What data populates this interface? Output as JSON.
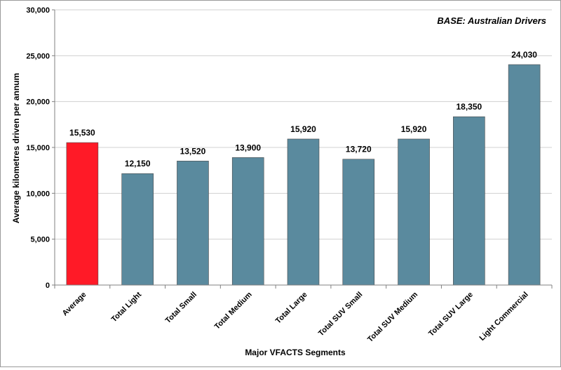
{
  "chart_data": {
    "type": "bar",
    "title": "",
    "annotation": "BASE: Australian Drivers",
    "xlabel": "Major VFACTS Segments",
    "ylabel": "Average kilometres driven per annum",
    "ylim": [
      0,
      30000
    ],
    "y_ticks": [
      0,
      5000,
      10000,
      15000,
      20000,
      25000,
      30000
    ],
    "y_tick_labels": [
      "0",
      "5,000",
      "10,000",
      "15,000",
      "20,000",
      "25,000",
      "30,000"
    ],
    "categories": [
      "Average",
      "Total Light",
      "Total Small",
      "Total Medium",
      "Total Large",
      "Total SUV Small",
      "Total SUV Medium",
      "Total SUV Large",
      "Light Commercial"
    ],
    "values": [
      15530,
      12150,
      13520,
      13900,
      15920,
      13720,
      15920,
      18350,
      24030
    ],
    "value_labels": [
      "15,530",
      "12,150",
      "13,520",
      "13,900",
      "15,920",
      "13,720",
      "15,920",
      "18,350",
      "24,030"
    ],
    "colors": [
      "#ff1a27",
      "#5a8a9e",
      "#5a8a9e",
      "#5a8a9e",
      "#5a8a9e",
      "#5a8a9e",
      "#5a8a9e",
      "#5a8a9e",
      "#5a8a9e"
    ],
    "grid": true,
    "legend": false
  }
}
